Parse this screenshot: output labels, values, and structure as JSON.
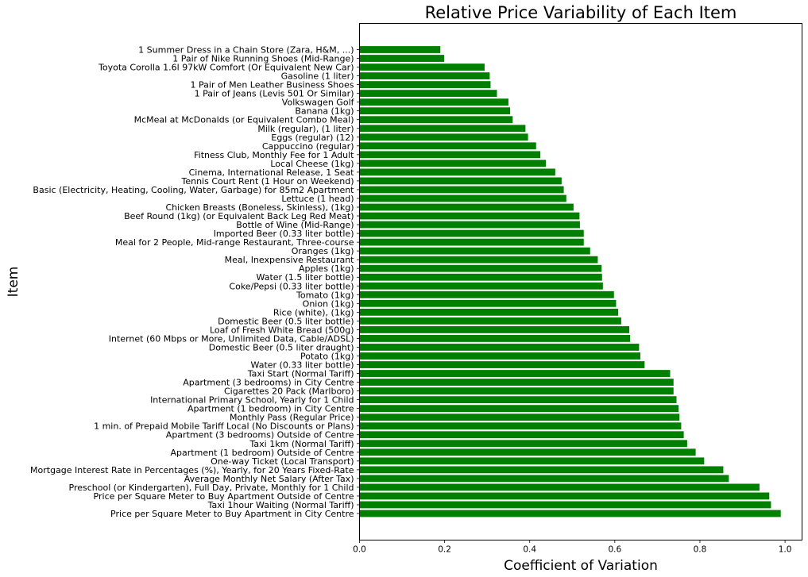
{
  "chart_data": {
    "type": "bar",
    "orientation": "horizontal",
    "title": "Relative Price Variability of Each Item",
    "xlabel": "Coefficient of Variation",
    "ylabel": "Item",
    "xlim": [
      0,
      1.04
    ],
    "xticks": [
      "0.0",
      "0.2",
      "0.4",
      "0.6",
      "0.8",
      "1.0"
    ],
    "bar_color": "#008000",
    "grid": false,
    "categories": [
      "1 Summer Dress in a Chain Store (Zara, H&M, ...)",
      "1 Pair of Nike Running Shoes (Mid-Range)",
      "Toyota Corolla 1.6l 97kW Comfort (Or Equivalent New Car)",
      "Gasoline (1 liter)",
      "1 Pair of Men Leather Business Shoes",
      "1 Pair of Jeans (Levis 501 Or Similar)",
      "Volkswagen Golf",
      "Banana (1kg)",
      "McMeal at McDonalds (or Equivalent Combo Meal)",
      "Milk (regular), (1 liter)",
      "Eggs (regular) (12)",
      "Cappuccino (regular)",
      "Fitness Club, Monthly Fee for 1 Adult",
      "Local Cheese (1kg)",
      "Cinema, International Release, 1 Seat",
      "Tennis Court Rent (1 Hour on Weekend)",
      "Basic (Electricity, Heating, Cooling, Water, Garbage) for 85m2 Apartment",
      "Lettuce (1 head)",
      "Chicken Breasts (Boneless, Skinless), (1kg)",
      "Beef Round (1kg) (or Equivalent Back Leg Red Meat)",
      "Bottle of Wine (Mid-Range)",
      "Imported Beer (0.33 liter bottle)",
      "Meal for 2 People, Mid-range Restaurant, Three-course",
      "Oranges (1kg)",
      "Meal, Inexpensive Restaurant",
      "Apples (1kg)",
      "Water (1.5 liter bottle)",
      "Coke/Pepsi (0.33 liter bottle)",
      "Tomato (1kg)",
      "Onion (1kg)",
      "Rice (white), (1kg)",
      "Domestic Beer (0.5 liter bottle)",
      "Loaf of Fresh White Bread (500g)",
      "Internet (60 Mbps or More, Unlimited Data, Cable/ADSL)",
      "Domestic Beer (0.5 liter draught)",
      "Potato (1kg)",
      "Water (0.33 liter bottle)",
      "Taxi Start (Normal Tariff)",
      "Apartment (3 bedrooms) in City Centre",
      "Cigarettes 20 Pack (Marlboro)",
      "International Primary School, Yearly for 1 Child",
      "Apartment (1 bedroom) in City Centre",
      "Monthly Pass (Regular Price)",
      "1 min. of Prepaid Mobile Tariff Local (No Discounts or Plans)",
      "Apartment (3 bedrooms) Outside of Centre",
      "Taxi 1km (Normal Tariff)",
      "Apartment (1 bedroom) Outside of Centre",
      "One-way Ticket (Local Transport)",
      "Mortgage Interest Rate in Percentages (%), Yearly, for 20 Years Fixed-Rate",
      "Average Monthly Net Salary (After Tax)",
      "Preschool (or Kindergarten), Full Day, Private, Monthly for 1 Child",
      "Price per Square Meter to Buy Apartment Outside of Centre",
      "Taxi 1hour Waiting (Normal Tariff)",
      "Price per Square Meter to Buy Apartment in City Centre"
    ],
    "values": [
      0.19,
      0.199,
      0.294,
      0.306,
      0.308,
      0.323,
      0.35,
      0.354,
      0.36,
      0.39,
      0.396,
      0.415,
      0.425,
      0.438,
      0.46,
      0.475,
      0.48,
      0.486,
      0.503,
      0.517,
      0.518,
      0.527,
      0.527,
      0.542,
      0.56,
      0.569,
      0.57,
      0.572,
      0.598,
      0.603,
      0.608,
      0.615,
      0.634,
      0.636,
      0.657,
      0.66,
      0.67,
      0.73,
      0.738,
      0.738,
      0.745,
      0.75,
      0.752,
      0.756,
      0.762,
      0.77,
      0.79,
      0.81,
      0.855,
      0.868,
      0.94,
      0.963,
      0.967,
      0.99
    ]
  }
}
